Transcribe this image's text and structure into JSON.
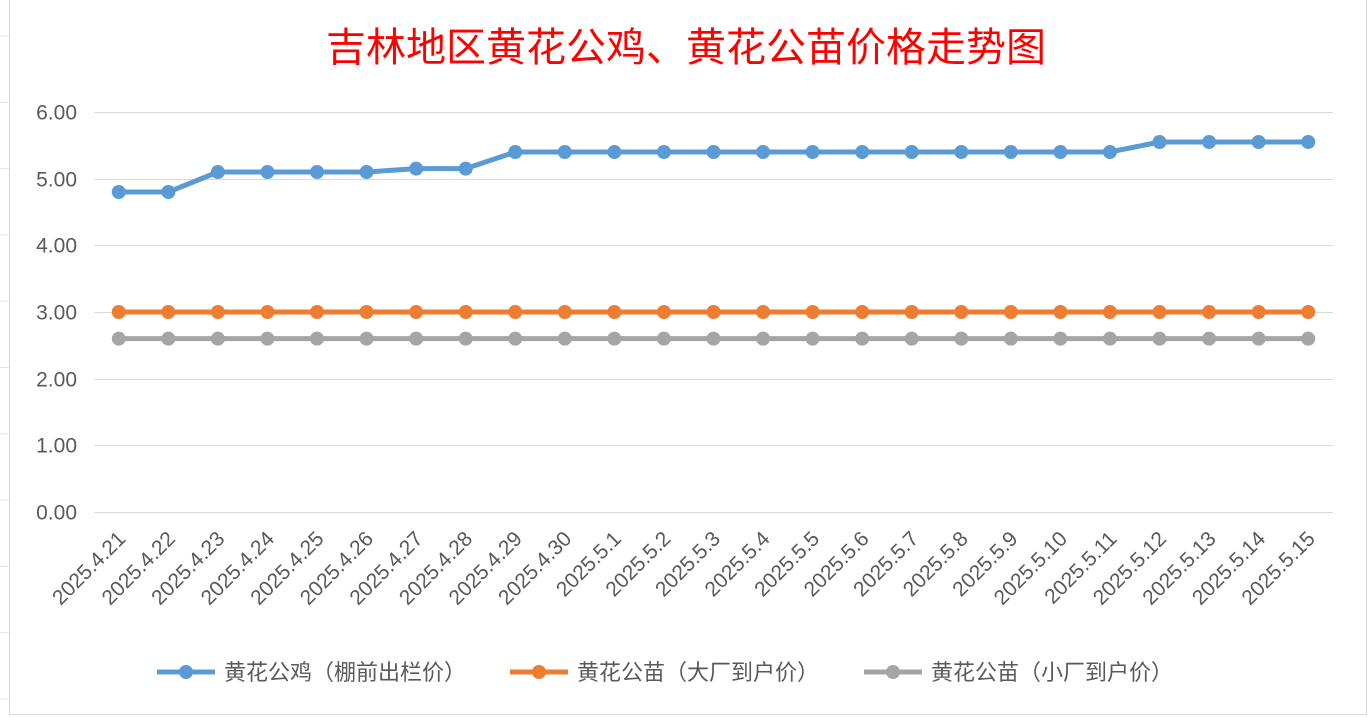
{
  "chart_data": {
    "type": "line",
    "title": "吉林地区黄花公鸡、黄花公苗价格走势图",
    "categories": [
      "2025.4.21",
      "2025.4.22",
      "2025.4.23",
      "2025.4.24",
      "2025.4.25",
      "2025.4.26",
      "2025.4.27",
      "2025.4.28",
      "2025.4.29",
      "2025.4.30",
      "2025.5.1",
      "2025.5.2",
      "2025.5.3",
      "2025.5.4",
      "2025.5.5",
      "2025.5.6",
      "2025.5.7",
      "2025.5.8",
      "2025.5.9",
      "2025.5.10",
      "2025.5.11",
      "2025.5.12",
      "2025.5.13",
      "2025.5.14",
      "2025.5.15"
    ],
    "series": [
      {
        "name": "黄花公鸡（棚前出栏价）",
        "color": "#5B9BD5",
        "values": [
          4.8,
          4.8,
          5.1,
          5.1,
          5.1,
          5.1,
          5.15,
          5.15,
          5.4,
          5.4,
          5.4,
          5.4,
          5.4,
          5.4,
          5.4,
          5.4,
          5.4,
          5.4,
          5.4,
          5.4,
          5.4,
          5.55,
          5.55,
          5.55,
          5.55
        ]
      },
      {
        "name": "黄花公苗（大厂到户价）",
        "color": "#ED7D31",
        "values": [
          3.0,
          3.0,
          3.0,
          3.0,
          3.0,
          3.0,
          3.0,
          3.0,
          3.0,
          3.0,
          3.0,
          3.0,
          3.0,
          3.0,
          3.0,
          3.0,
          3.0,
          3.0,
          3.0,
          3.0,
          3.0,
          3.0,
          3.0,
          3.0,
          3.0
        ]
      },
      {
        "name": "黄花公苗（小厂到户价）",
        "color": "#A5A5A5",
        "values": [
          2.6,
          2.6,
          2.6,
          2.6,
          2.6,
          2.6,
          2.6,
          2.6,
          2.6,
          2.6,
          2.6,
          2.6,
          2.6,
          2.6,
          2.6,
          2.6,
          2.6,
          2.6,
          2.6,
          2.6,
          2.6,
          2.6,
          2.6,
          2.6,
          2.6
        ]
      }
    ],
    "ylim": [
      0,
      6
    ],
    "yticks": [
      "0.00",
      "1.00",
      "2.00",
      "3.00",
      "4.00",
      "5.00",
      "6.00"
    ],
    "grid": true,
    "markers": true,
    "legend_position": "bottom"
  },
  "title_color": "#FF0000"
}
